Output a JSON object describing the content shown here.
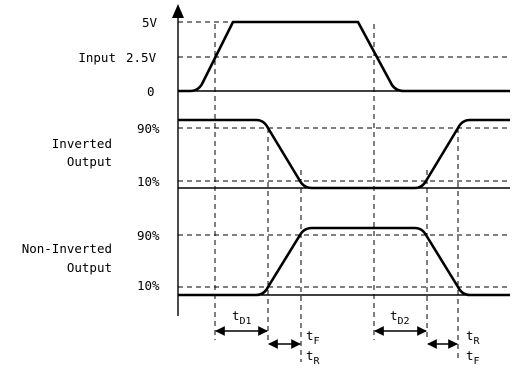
{
  "input": {
    "label": "Input",
    "levels": {
      "high": "5V",
      "mid": "2.5V",
      "low": "0"
    }
  },
  "inverted": {
    "label_line1": "Inverted",
    "label_line2": "Output",
    "levels": {
      "high": "90%",
      "low": "10%"
    }
  },
  "noninverted": {
    "label_line1": "Non-Inverted",
    "label_line2": "Output",
    "levels": {
      "high": "90%",
      "low": "10%"
    }
  },
  "timing": {
    "td1": {
      "main": "t",
      "sub": "D1"
    },
    "td2": {
      "main": "t",
      "sub": "D2"
    },
    "tf_left": {
      "main": "t",
      "sub": "F"
    },
    "tr_left": {
      "main": "t",
      "sub": "R"
    },
    "tr_right": {
      "main": "t",
      "sub": "R"
    },
    "tf_right": {
      "main": "t",
      "sub": "F"
    }
  }
}
